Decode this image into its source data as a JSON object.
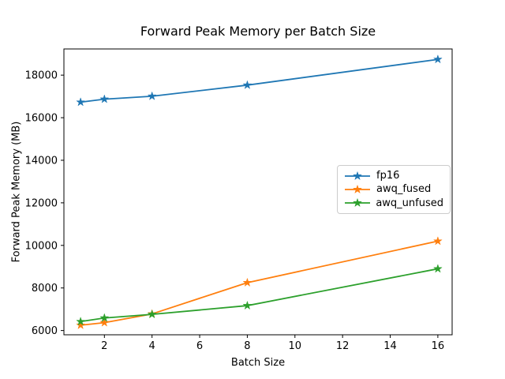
{
  "chart_data": {
    "type": "line",
    "title": "Forward Peak Memory per Batch Size",
    "xlabel": "Batch Size",
    "ylabel": "Forward Peak Memory (MB)",
    "x": [
      1,
      2,
      4,
      8,
      16
    ],
    "series": [
      {
        "name": "fp16",
        "color": "#1f77b4",
        "values": [
          16730,
          16870,
          17010,
          17530,
          18740
        ]
      },
      {
        "name": "awq_fused",
        "color": "#ff7f0e",
        "values": [
          6250,
          6370,
          6780,
          8250,
          10200
        ]
      },
      {
        "name": "awq_unfused",
        "color": "#2ca02c",
        "values": [
          6420,
          6590,
          6760,
          7170,
          8900
        ]
      }
    ],
    "marker": "star",
    "xticks": [
      2,
      4,
      6,
      8,
      10,
      12,
      14,
      16
    ],
    "yticks": [
      6000,
      8000,
      10000,
      12000,
      14000,
      16000,
      18000
    ],
    "xlim": [
      0.3,
      16.6
    ],
    "ylim": [
      5800,
      19230
    ],
    "grid": false,
    "legend_position": "center right",
    "background_color": "#ffffff",
    "axes_color": "#000000"
  }
}
